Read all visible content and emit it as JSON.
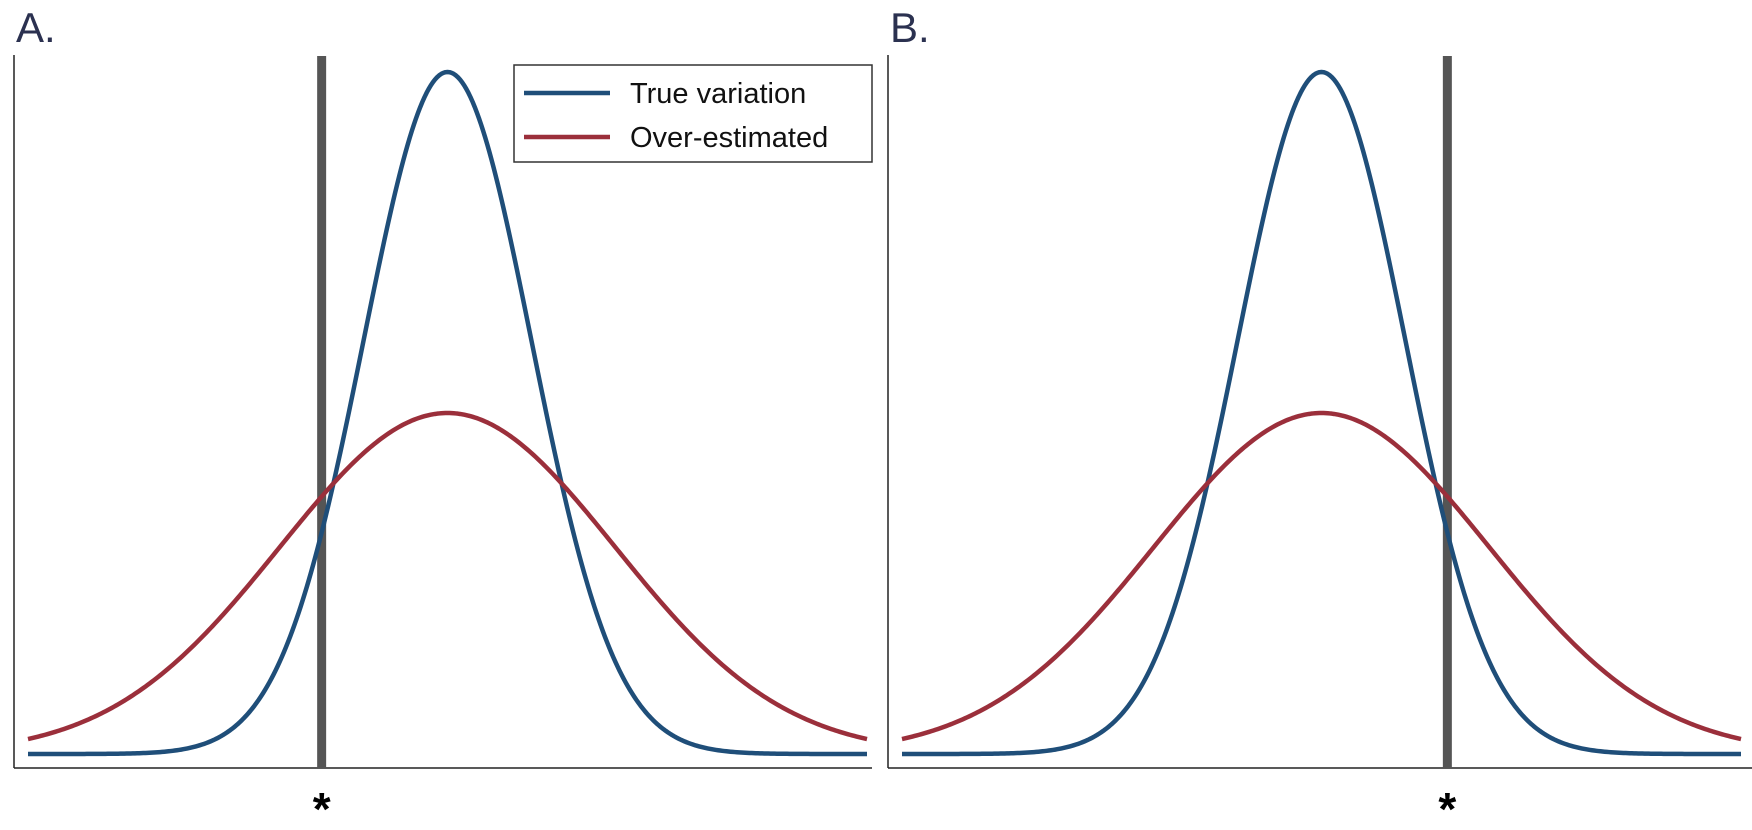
{
  "chart_data": [
    {
      "type": "line",
      "panel_label": "A.",
      "x_range": [
        -5,
        5
      ],
      "y_range": [
        0,
        1
      ],
      "axes": {
        "left_line": true,
        "bottom_line": true,
        "ticks": false,
        "grid": false
      },
      "series": [
        {
          "name": "True variation",
          "kind": "normal_density",
          "mean": 0,
          "sd": 1,
          "peak": 1.0,
          "color": "#1f4e79"
        },
        {
          "name": "Over-estimated",
          "kind": "normal_density",
          "mean": 0,
          "sd": 2,
          "peak": 0.5,
          "color": "#9b2f3b"
        }
      ],
      "vline": {
        "x": -1.5,
        "color": "#555555"
      },
      "marker_label": "*",
      "legend": {
        "position": "top-right",
        "items": [
          "True variation",
          "Over-estimated"
        ]
      }
    },
    {
      "type": "line",
      "panel_label": "B.",
      "x_range": [
        -5,
        5
      ],
      "y_range": [
        0,
        1
      ],
      "axes": {
        "left_line": true,
        "bottom_line": true,
        "ticks": false,
        "grid": false
      },
      "series": [
        {
          "name": "True variation",
          "kind": "normal_density",
          "mean": 0,
          "sd": 1,
          "peak": 1.0,
          "color": "#1f4e79"
        },
        {
          "name": "Over-estimated",
          "kind": "normal_density",
          "mean": 0,
          "sd": 2,
          "peak": 0.5,
          "color": "#9b2f3b"
        }
      ],
      "vline": {
        "x": 1.5,
        "color": "#555555"
      },
      "marker_label": "*",
      "legend": null
    }
  ]
}
